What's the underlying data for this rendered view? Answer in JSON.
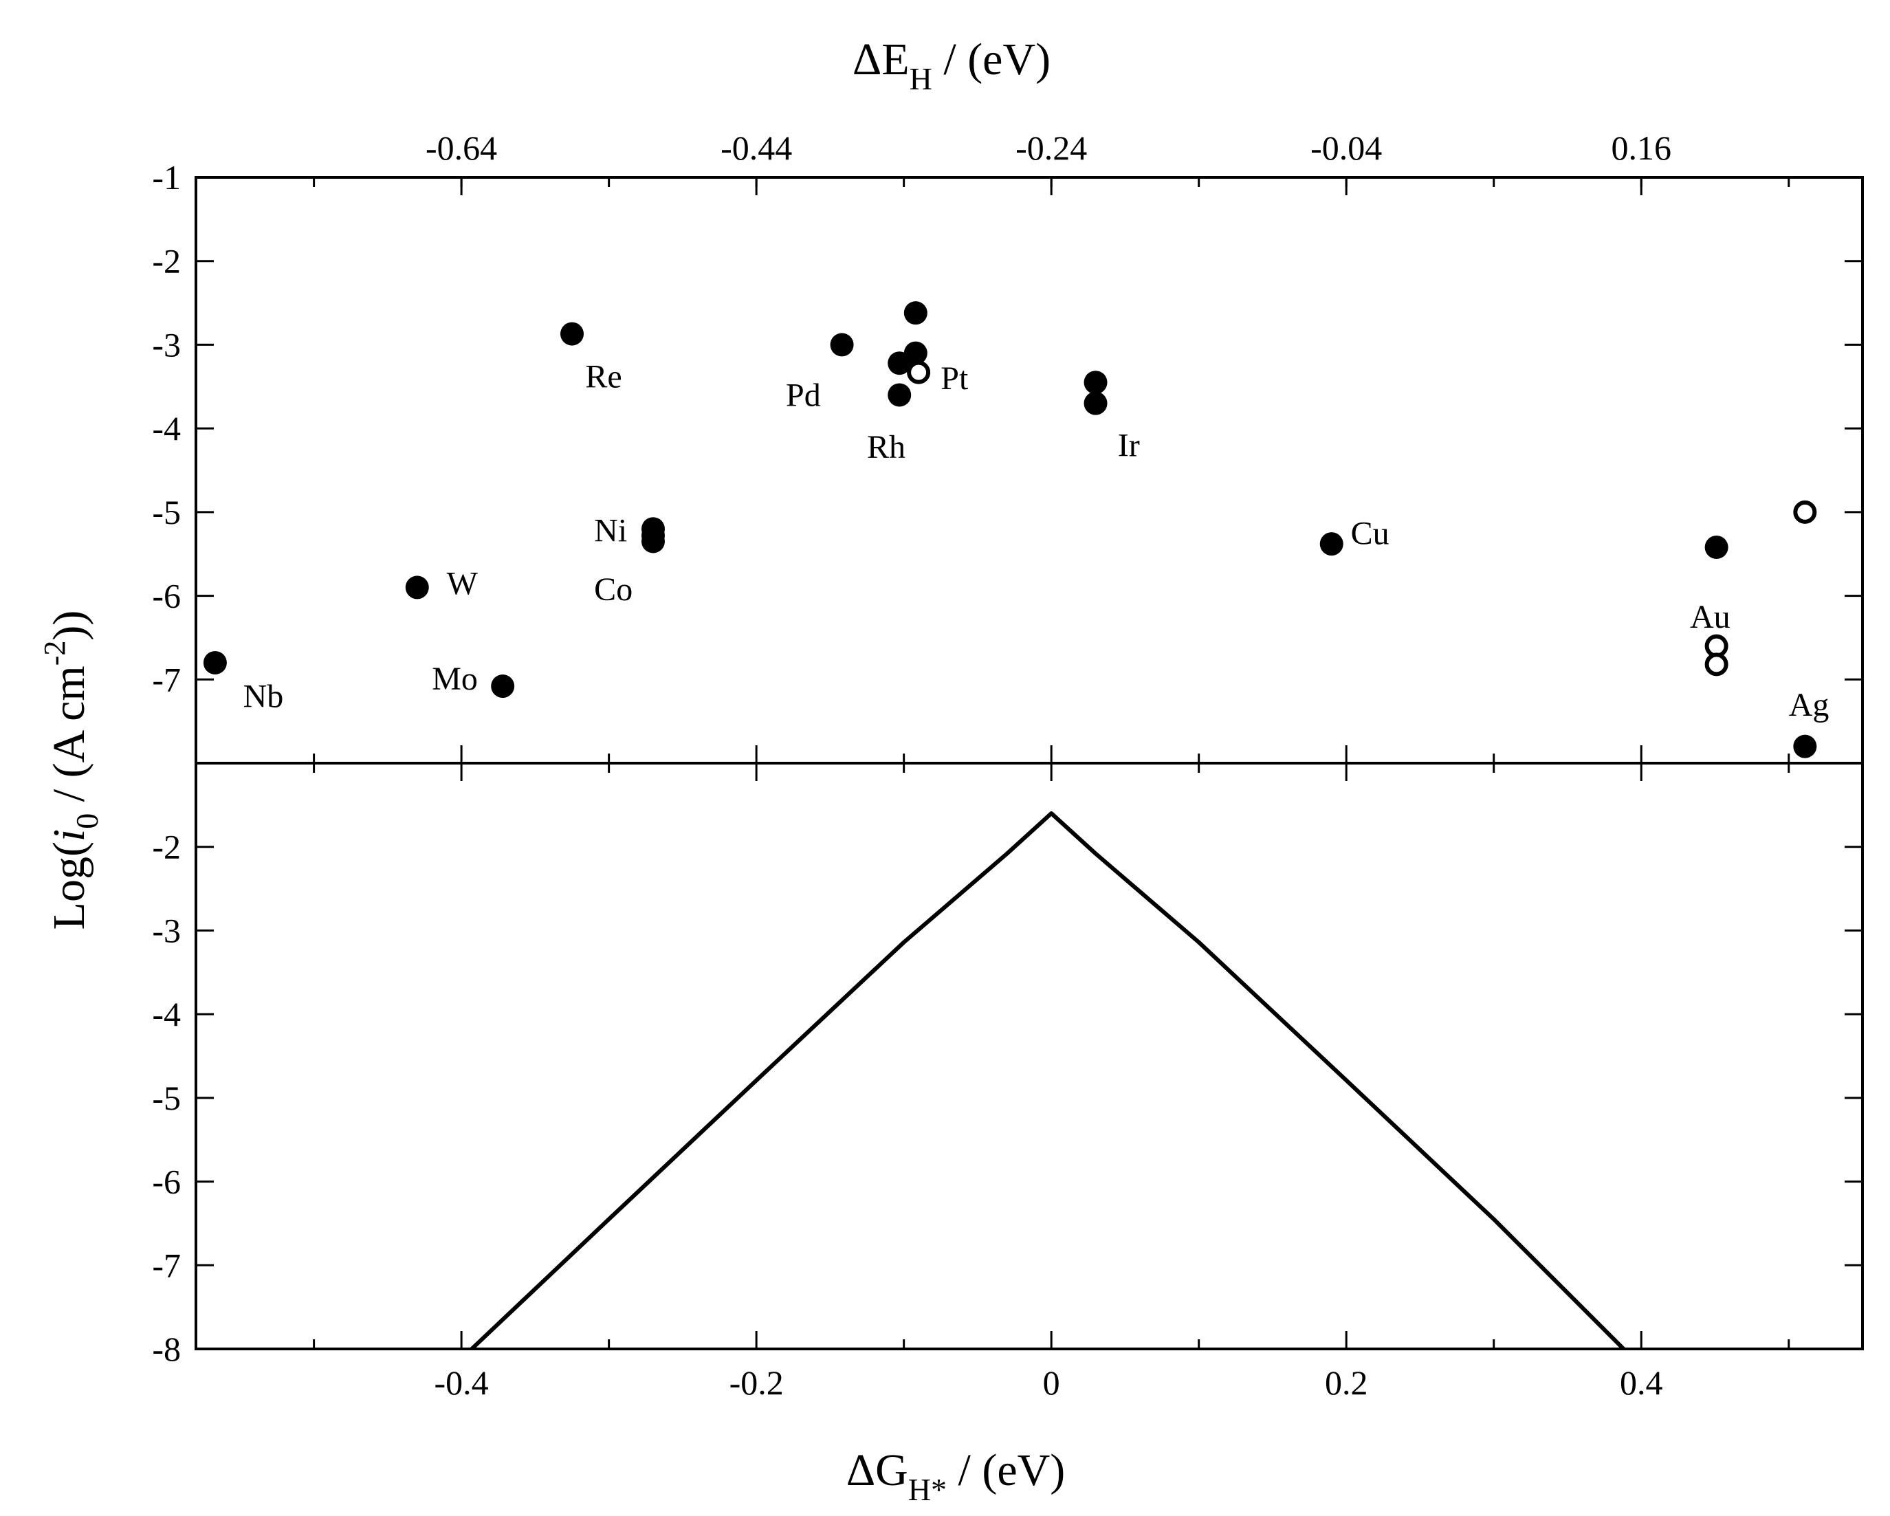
{
  "chart_data": {
    "type": "scatter",
    "top_axis": {
      "title_main": "ΔE",
      "title_sub": "H",
      "title_rest": " / (eV)",
      "ticks": [
        -0.64,
        -0.44,
        -0.24,
        -0.04,
        0.16
      ],
      "tick_labels": [
        "-0.64",
        "-0.44",
        "-0.24",
        "-0.04",
        "0.16"
      ]
    },
    "bottom_axis": {
      "title_main": "ΔG",
      "title_sub": "H*",
      "title_rest": " / (eV)",
      "xlim": [
        -0.58,
        0.55
      ],
      "ticks": [
        -0.4,
        -0.2,
        0,
        0.2,
        0.4
      ],
      "tick_labels": [
        "-0.4",
        "-0.2",
        "0",
        "0.2",
        "0.4"
      ]
    },
    "ylabel": {
      "prefix": "Log(",
      "italic": "i",
      "sub": "0",
      "middle": " / (A cm",
      "sup": "-2",
      "suffix": "))"
    },
    "top_panel": {
      "ylim": [
        -8,
        -1
      ],
      "yticks": [
        -1,
        -2,
        -3,
        -4,
        -5,
        -6,
        -7
      ],
      "ytick_labels": [
        "-1",
        "-2",
        "-3",
        "-4",
        "-5",
        "-6",
        "-7"
      ],
      "points": [
        {
          "x": -0.567,
          "y": -6.8,
          "filled": true
        },
        {
          "x": -0.43,
          "y": -5.9,
          "filled": true
        },
        {
          "x": -0.372,
          "y": -7.08,
          "filled": true
        },
        {
          "x": -0.325,
          "y": -2.87,
          "filled": true
        },
        {
          "x": -0.27,
          "y": -5.2,
          "filled": true
        },
        {
          "x": -0.27,
          "y": -5.28,
          "filled": true
        },
        {
          "x": -0.27,
          "y": -5.35,
          "filled": true
        },
        {
          "x": -0.142,
          "y": -3.0,
          "filled": true
        },
        {
          "x": -0.103,
          "y": -3.22,
          "filled": true
        },
        {
          "x": -0.103,
          "y": -3.6,
          "filled": true
        },
        {
          "x": -0.092,
          "y": -2.62,
          "filled": true
        },
        {
          "x": -0.092,
          "y": -3.1,
          "filled": true
        },
        {
          "x": -0.09,
          "y": -3.33,
          "filled": false
        },
        {
          "x": 0.03,
          "y": -3.45,
          "filled": true
        },
        {
          "x": 0.03,
          "y": -3.7,
          "filled": true
        },
        {
          "x": 0.19,
          "y": -5.38,
          "filled": true
        },
        {
          "x": 0.451,
          "y": -5.42,
          "filled": true
        },
        {
          "x": 0.451,
          "y": -6.6,
          "filled": false
        },
        {
          "x": 0.451,
          "y": -6.82,
          "filled": false
        },
        {
          "x": 0.511,
          "y": -5.0,
          "filled": false
        },
        {
          "x": 0.511,
          "y": -7.8,
          "filled": true
        }
      ],
      "labels": [
        {
          "text": "Nb",
          "x": -0.548,
          "y": -7.2
        },
        {
          "text": "W",
          "x": -0.41,
          "y": -5.85
        },
        {
          "text": "Mo",
          "x": -0.42,
          "y": -6.99
        },
        {
          "text": "Re",
          "x": -0.316,
          "y": -3.38
        },
        {
          "text": "Ni",
          "x": -0.31,
          "y": -5.22
        },
        {
          "text": "Co",
          "x": -0.31,
          "y": -5.92
        },
        {
          "text": "Pd",
          "x": -0.18,
          "y": -3.6
        },
        {
          "text": "Pt",
          "x": -0.075,
          "y": -3.4
        },
        {
          "text": "Rh",
          "x": -0.125,
          "y": -4.22
        },
        {
          "text": "Ir",
          "x": 0.045,
          "y": -4.2
        },
        {
          "text": "Cu",
          "x": 0.203,
          "y": -5.25
        },
        {
          "text": "Au",
          "x": 0.433,
          "y": -6.25
        },
        {
          "text": "Ag",
          "x": 0.5,
          "y": -7.3
        }
      ]
    },
    "bottom_panel": {
      "ylim": [
        -8,
        -1
      ],
      "yticks": [
        -2,
        -3,
        -4,
        -5,
        -6,
        -7,
        -8
      ],
      "ytick_labels": [
        "-2",
        "-3",
        "-4",
        "-5",
        "-6",
        "-7",
        "-8"
      ],
      "line": {
        "x": [
          -0.393,
          -0.3,
          -0.2,
          -0.1,
          -0.03,
          0,
          0.03,
          0.1,
          0.2,
          0.3,
          0.388
        ],
        "y": [
          -8.0,
          -6.45,
          -4.79,
          -3.14,
          -2.08,
          -1.6,
          -2.08,
          -3.14,
          -4.79,
          -6.45,
          -8.0
        ]
      }
    }
  }
}
